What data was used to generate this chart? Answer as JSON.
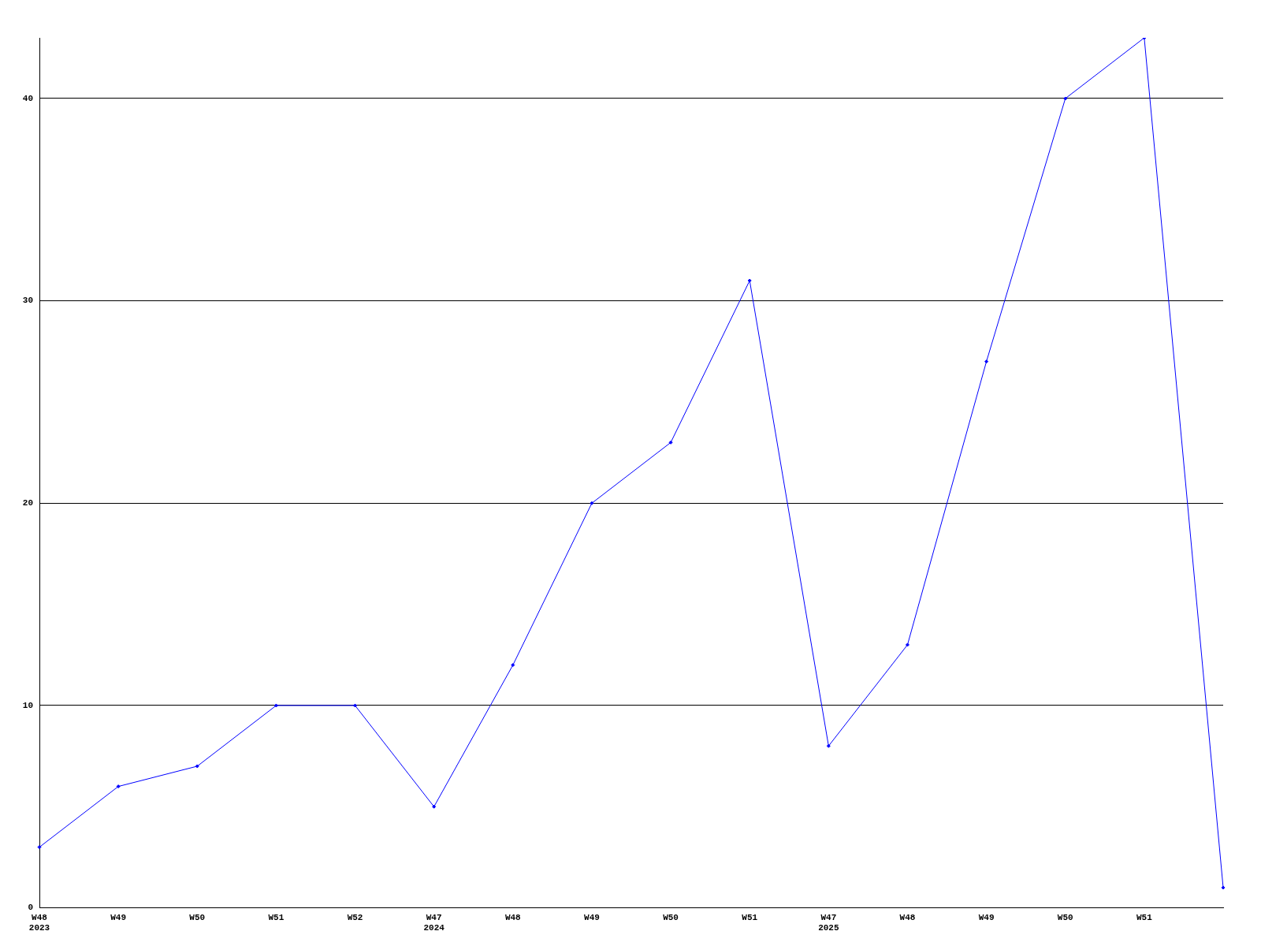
{
  "chart_data": {
    "type": "line",
    "categories": [
      "W48\n2023",
      "W49",
      "W50",
      "W51",
      "W52",
      "W47\n2024",
      "W48",
      "W49",
      "W50",
      "W51",
      "W47\n2025",
      "W48",
      "W49",
      "W50",
      "W51",
      null
    ],
    "series": [
      {
        "color": "#0000ff",
        "values": [
          3,
          6,
          7,
          10,
          10,
          5,
          12,
          20,
          23,
          31,
          8,
          13,
          27,
          40,
          43,
          1
        ]
      }
    ],
    "ylim": [
      0,
      43
    ],
    "yticks": [
      0,
      10,
      20,
      30,
      40
    ],
    "grid": "y",
    "legend": false,
    "marker": "diamond",
    "line_style": "solid"
  }
}
